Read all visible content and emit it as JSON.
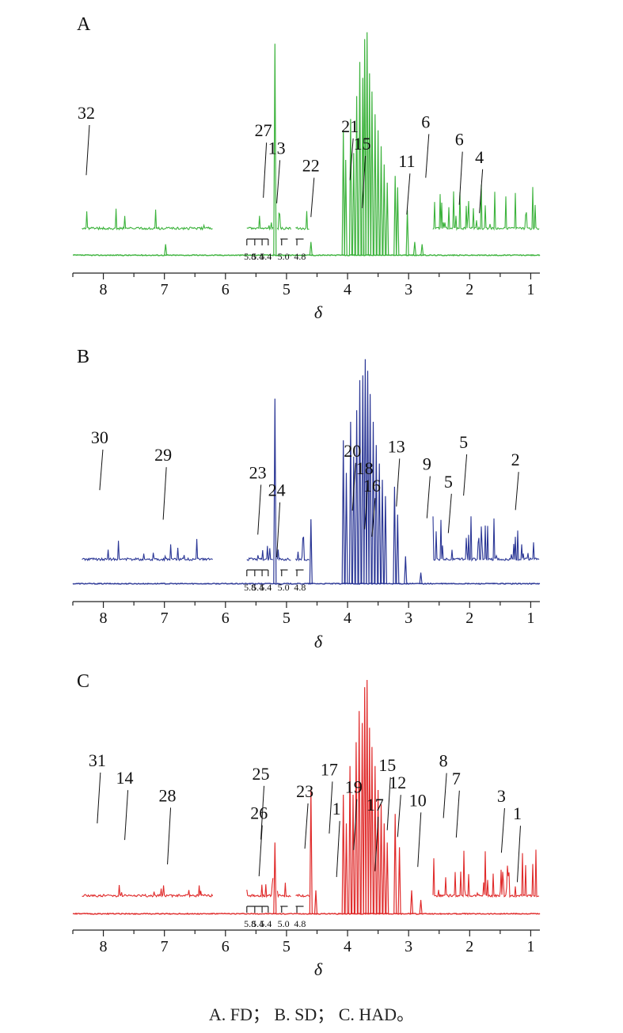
{
  "caption": "A. FD； B. SD； C. HAD。",
  "chart_data": [
    {
      "type": "line",
      "panel_label": "A",
      "xlabel": "δ",
      "x_ticks": [
        "8",
        "7",
        "6",
        "5",
        "4",
        "3",
        "2",
        "1"
      ],
      "xlim": [
        8.5,
        0.85
      ],
      "reversed_x": true,
      "color": "#3db33d",
      "inset_ticks": [
        "5.8",
        "5.4",
        "5.4",
        "5.0",
        "4.8"
      ],
      "peaks": [
        {
          "x": 6.98,
          "h": 0.05
        },
        {
          "x": 5.19,
          "h": 0.93
        },
        {
          "x": 4.6,
          "h": 0.06
        },
        {
          "x": 4.07,
          "h": 0.55
        },
        {
          "x": 4.03,
          "h": 0.42
        },
        {
          "x": 3.95,
          "h": 0.6
        },
        {
          "x": 3.9,
          "h": 0.45
        },
        {
          "x": 3.85,
          "h": 0.7
        },
        {
          "x": 3.8,
          "h": 0.85
        },
        {
          "x": 3.75,
          "h": 0.78
        },
        {
          "x": 3.72,
          "h": 0.95
        },
        {
          "x": 3.68,
          "h": 0.98
        },
        {
          "x": 3.64,
          "h": 0.8
        },
        {
          "x": 3.6,
          "h": 0.72
        },
        {
          "x": 3.55,
          "h": 0.62
        },
        {
          "x": 3.5,
          "h": 0.55
        },
        {
          "x": 3.45,
          "h": 0.48
        },
        {
          "x": 3.4,
          "h": 0.4
        },
        {
          "x": 3.35,
          "h": 0.32
        },
        {
          "x": 3.22,
          "h": 0.35
        },
        {
          "x": 3.18,
          "h": 0.3
        },
        {
          "x": 3.02,
          "h": 0.2
        },
        {
          "x": 2.9,
          "h": 0.06
        },
        {
          "x": 2.78,
          "h": 0.05
        }
      ],
      "inset_left_x": [
        8.35,
        6.2
      ],
      "inset_right_x": [
        2.6,
        0.85
      ],
      "inset_mid_x": [
        5.65,
        4.62
      ],
      "labels": [
        {
          "text": "32",
          "x": 8.28
        },
        {
          "text": "27",
          "x": 5.38
        },
        {
          "text": "13",
          "x": 5.16
        },
        {
          "text": "22",
          "x": 4.6
        },
        {
          "text": "21",
          "x": 3.96
        },
        {
          "text": "15",
          "x": 3.76
        },
        {
          "text": "11",
          "x": 3.03
        },
        {
          "text": "6",
          "x": 2.72
        },
        {
          "text": "6",
          "x": 2.17
        },
        {
          "text": "4",
          "x": 1.84
        }
      ]
    },
    {
      "type": "line",
      "panel_label": "B",
      "xlabel": "δ",
      "x_ticks": [
        "8",
        "7",
        "6",
        "5",
        "4",
        "3",
        "2",
        "1"
      ],
      "xlim": [
        8.5,
        0.85
      ],
      "reversed_x": true,
      "color": "#2b3796",
      "inset_ticks": [
        "5.8",
        "5.4",
        "5.4",
        "5.0",
        "4.8"
      ],
      "peaks": [
        {
          "x": 5.19,
          "h": 0.8
        },
        {
          "x": 4.6,
          "h": 0.28
        },
        {
          "x": 4.07,
          "h": 0.62
        },
        {
          "x": 4.02,
          "h": 0.48
        },
        {
          "x": 3.95,
          "h": 0.7
        },
        {
          "x": 3.9,
          "h": 0.55
        },
        {
          "x": 3.85,
          "h": 0.75
        },
        {
          "x": 3.8,
          "h": 0.88
        },
        {
          "x": 3.75,
          "h": 0.9
        },
        {
          "x": 3.71,
          "h": 0.97
        },
        {
          "x": 3.67,
          "h": 0.92
        },
        {
          "x": 3.63,
          "h": 0.82
        },
        {
          "x": 3.58,
          "h": 0.7
        },
        {
          "x": 3.53,
          "h": 0.6
        },
        {
          "x": 3.48,
          "h": 0.52
        },
        {
          "x": 3.43,
          "h": 0.45
        },
        {
          "x": 3.38,
          "h": 0.38
        },
        {
          "x": 3.23,
          "h": 0.42
        },
        {
          "x": 3.18,
          "h": 0.3
        },
        {
          "x": 3.05,
          "h": 0.12
        },
        {
          "x": 2.8,
          "h": 0.05
        }
      ],
      "inset_left_x": [
        8.35,
        6.2
      ],
      "inset_right_x": [
        2.6,
        0.85
      ],
      "inset_mid_x": [
        5.65,
        4.62
      ],
      "labels": [
        {
          "text": "30",
          "x": 8.06
        },
        {
          "text": "29",
          "x": 7.02
        },
        {
          "text": "23",
          "x": 5.47
        },
        {
          "text": "24",
          "x": 5.16
        },
        {
          "text": "20",
          "x": 3.92
        },
        {
          "text": "18",
          "x": 3.72
        },
        {
          "text": "16",
          "x": 3.6
        },
        {
          "text": "13",
          "x": 3.2
        },
        {
          "text": "9",
          "x": 2.7
        },
        {
          "text": "5",
          "x": 2.35
        },
        {
          "text": "5",
          "x": 2.1
        },
        {
          "text": "2",
          "x": 1.25
        }
      ]
    },
    {
      "type": "line",
      "panel_label": "C",
      "xlabel": "δ",
      "x_ticks": [
        "8",
        "7",
        "6",
        "5",
        "4",
        "3",
        "2",
        "1"
      ],
      "xlim": [
        8.5,
        0.85
      ],
      "reversed_x": true,
      "color": "#e02b2b",
      "inset_ticks": [
        "5.8",
        "5.4",
        "5.4",
        "5.0",
        "4.8"
      ],
      "peaks": [
        {
          "x": 5.19,
          "h": 0.3
        },
        {
          "x": 4.6,
          "h": 0.52
        },
        {
          "x": 4.52,
          "h": 0.1
        },
        {
          "x": 4.07,
          "h": 0.5
        },
        {
          "x": 4.02,
          "h": 0.38
        },
        {
          "x": 3.96,
          "h": 0.62
        },
        {
          "x": 3.91,
          "h": 0.5
        },
        {
          "x": 3.86,
          "h": 0.72
        },
        {
          "x": 3.81,
          "h": 0.85
        },
        {
          "x": 3.76,
          "h": 0.8
        },
        {
          "x": 3.72,
          "h": 0.95
        },
        {
          "x": 3.68,
          "h": 0.98
        },
        {
          "x": 3.64,
          "h": 0.78
        },
        {
          "x": 3.6,
          "h": 0.7
        },
        {
          "x": 3.55,
          "h": 0.62
        },
        {
          "x": 3.5,
          "h": 0.52
        },
        {
          "x": 3.45,
          "h": 0.46
        },
        {
          "x": 3.4,
          "h": 0.38
        },
        {
          "x": 3.35,
          "h": 0.3
        },
        {
          "x": 3.22,
          "h": 0.42
        },
        {
          "x": 3.15,
          "h": 0.28
        },
        {
          "x": 2.95,
          "h": 0.1
        },
        {
          "x": 2.8,
          "h": 0.06
        }
      ],
      "inset_left_x": [
        8.35,
        6.2
      ],
      "inset_right_x": [
        2.6,
        0.85
      ],
      "inset_mid_x": [
        5.65,
        4.62
      ],
      "labels": [
        {
          "text": "31",
          "x": 8.1
        },
        {
          "text": "14",
          "x": 7.65
        },
        {
          "text": "28",
          "x": 6.95
        },
        {
          "text": "26",
          "x": 5.45
        },
        {
          "text": "25",
          "x": 5.42
        },
        {
          "text": "23",
          "x": 4.7
        },
        {
          "text": "1",
          "x": 4.18
        },
        {
          "text": "17",
          "x": 4.3
        },
        {
          "text": "19",
          "x": 3.9
        },
        {
          "text": "17",
          "x": 3.55
        },
        {
          "text": "15",
          "x": 3.35
        },
        {
          "text": "12",
          "x": 3.18
        },
        {
          "text": "10",
          "x": 2.85
        },
        {
          "text": "8",
          "x": 2.43
        },
        {
          "text": "7",
          "x": 2.22
        },
        {
          "text": "3",
          "x": 1.48
        },
        {
          "text": "1",
          "x": 1.22
        }
      ]
    }
  ]
}
